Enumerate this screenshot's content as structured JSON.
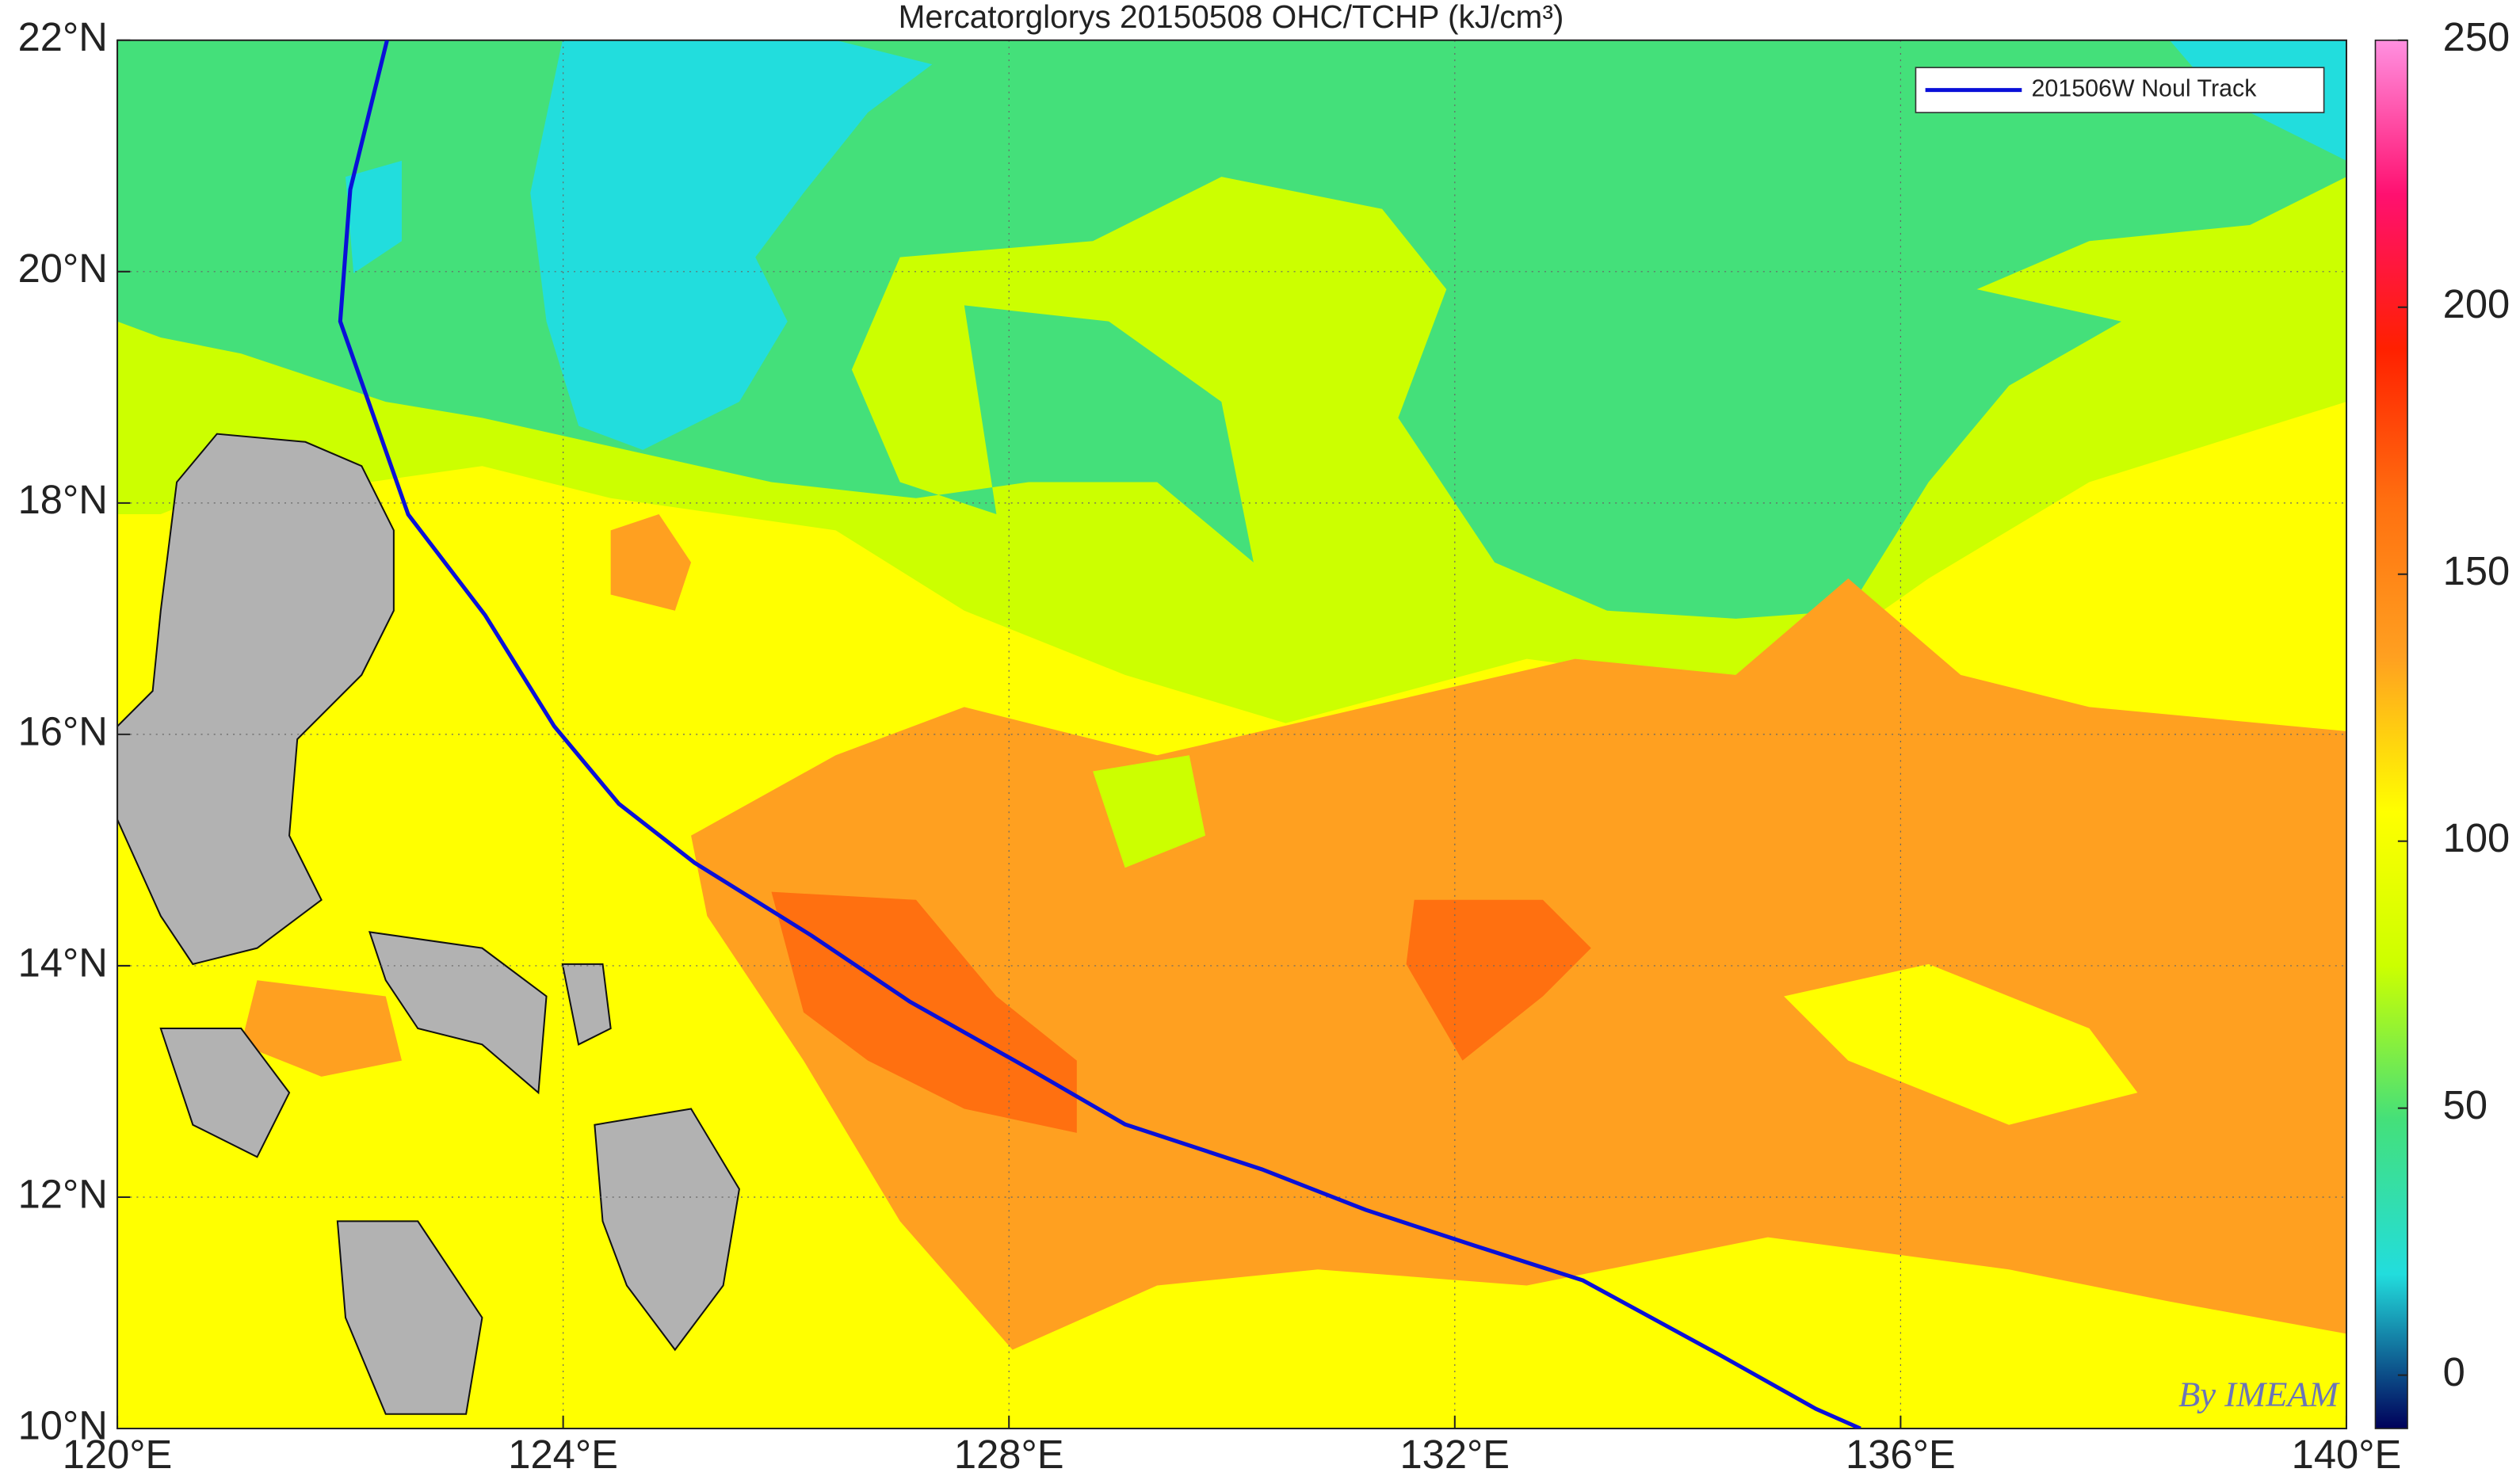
{
  "chart_data": {
    "type": "line",
    "title": "Mercatorglorys 20150508 OHC/TCHP (kJ/cm³)",
    "xlim": [
      120,
      140
    ],
    "ylim": [
      10,
      22
    ],
    "xticks": [
      {
        "value": 120,
        "label": "120°E"
      },
      {
        "value": 124,
        "label": "124°E"
      },
      {
        "value": 128,
        "label": "128°E"
      },
      {
        "value": 132,
        "label": "132°E"
      },
      {
        "value": 136,
        "label": "136°E"
      },
      {
        "value": 140,
        "label": "140°E"
      }
    ],
    "yticks": [
      {
        "value": 10,
        "label": "10°N"
      },
      {
        "value": 12,
        "label": "12°N"
      },
      {
        "value": 14,
        "label": "14°N"
      },
      {
        "value": 16,
        "label": "16°N"
      },
      {
        "value": 18,
        "label": "18°N"
      },
      {
        "value": 20,
        "label": "20°N"
      },
      {
        "value": 22,
        "label": "22°N"
      }
    ],
    "grid": true,
    "legend": "upper right",
    "series": [
      {
        "name": "201506W Noul Track",
        "color": "#0a10d8",
        "x": [
          122.42,
          122.09,
          122.0,
          122.61,
          123.3,
          123.92,
          124.5,
          125.18,
          126.23,
          127.11,
          128.18,
          129.04,
          130.27,
          131.2,
          132.18,
          133.15,
          134.37,
          135.24,
          135.64
        ],
        "values": [
          22.0,
          20.71,
          19.57,
          17.9,
          17.03,
          16.07,
          15.4,
          14.89,
          14.26,
          13.69,
          13.11,
          12.63,
          12.24,
          11.89,
          11.58,
          11.28,
          10.64,
          10.17,
          10.0
        ]
      }
    ],
    "colorbar": {
      "lim": [
        -10,
        250
      ],
      "ticks": [
        0,
        50,
        100,
        150,
        200,
        250
      ],
      "colors": [
        "#00005a",
        "#22dddd",
        "#44e07a",
        "#ccff00",
        "#ffff00",
        "#ffa020",
        "#ff7010",
        "#ff2000",
        "#ff1070",
        "#ff90e0"
      ]
    },
    "annotation": "By IMEAM"
  }
}
